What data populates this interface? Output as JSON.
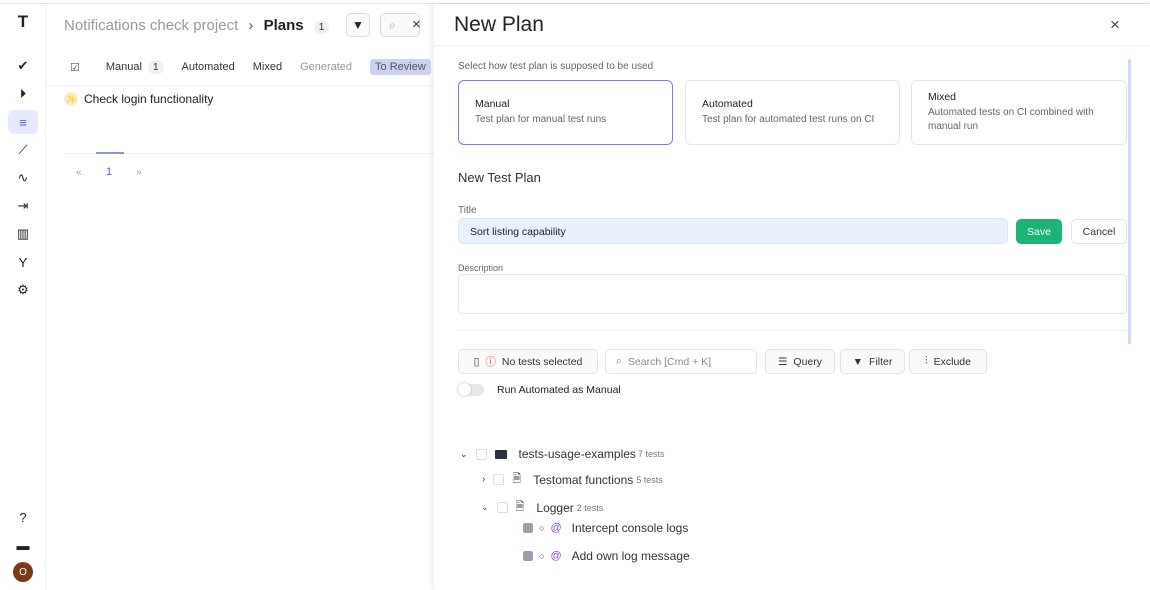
{
  "sidebar": {
    "logo": "T",
    "items": [
      "check-icon",
      "play-icon",
      "plans-icon",
      "steps-icon",
      "pulse-icon",
      "import-icon",
      "analytics-icon",
      "branch-icon",
      "gear-icon"
    ],
    "bottom": [
      "help-icon",
      "folder-icon"
    ],
    "avatar": "O",
    "avatar_color": "#7a3a1a"
  },
  "left": {
    "project": "Notifications check project",
    "separator": "›",
    "page": "Plans",
    "count": "1",
    "tabs": [
      {
        "label": "Manual",
        "badge": "1"
      },
      {
        "label": "Automated"
      },
      {
        "label": "Mixed"
      },
      {
        "label": "Generated"
      },
      {
        "label": "To Review"
      }
    ],
    "plans": [
      {
        "title": "Check login functionality"
      }
    ],
    "pagination": {
      "prev": "«",
      "current": "1",
      "next": "»"
    }
  },
  "drawer": {
    "title": "New Plan",
    "close": "×",
    "select_hint": "Select how test plan is supposed to be used",
    "types": [
      {
        "title": "Manual",
        "desc": "Test plan for manual test runs",
        "selected": true
      },
      {
        "title": "Automated",
        "desc": "Test plan for automated test runs on CI"
      },
      {
        "title": "Mixed",
        "desc": "Automated tests on CI combined with manual run"
      }
    ],
    "section_title": "New Test Plan",
    "title_label": "Title",
    "title_value": "Sort listing capability",
    "save": "Save",
    "cancel": "Cancel",
    "description_label": "Description",
    "description_value": "",
    "toolbar": {
      "selected": "No tests selected",
      "search_placeholder": "Search [Cmd + K]",
      "query": "Query",
      "filter": "Filter",
      "exclude": "Exclude"
    },
    "toggle": {
      "label": "Run Automated as Manual",
      "on": false
    },
    "tree": {
      "root": {
        "name": "tests-usage-examples",
        "count": "7 tests"
      },
      "suites": [
        {
          "name": "Testomat functions",
          "count": "5 tests"
        },
        {
          "name": "Logger",
          "count": "2 tests"
        }
      ],
      "tests": [
        "Intercept console logs",
        "Add own log message"
      ]
    },
    "accent": "#5b5fc7",
    "save_color": "#1db377"
  }
}
